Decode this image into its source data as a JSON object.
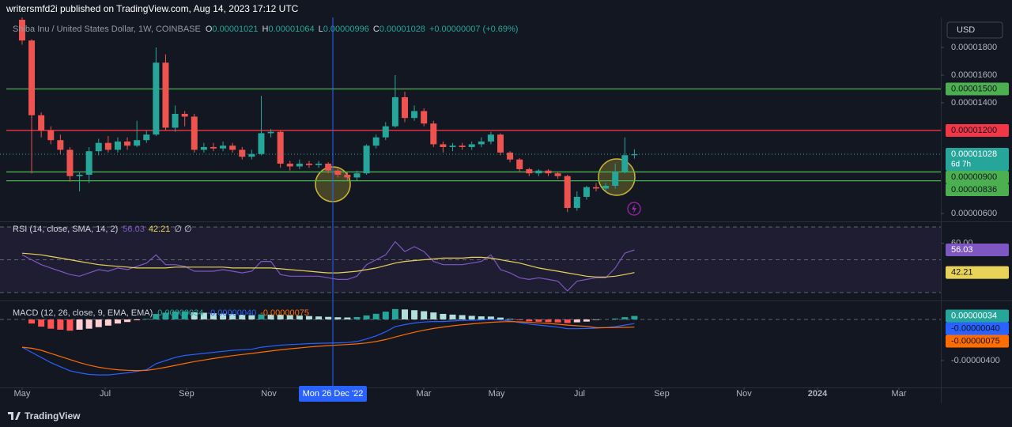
{
  "header": {
    "published": "writersmfd2i published on TradingView.com, Aug 14, 2023 17:12 UTC",
    "currency": "USD",
    "footer": "TradingView"
  },
  "chart_data": [
    {
      "type": "candlestick",
      "title": "Shiba Inu / United States Dollar, 1W, COINBASE",
      "legend_fields": [
        {
          "key": "O",
          "text": "0.00001021"
        },
        {
          "key": "H",
          "text": "0.00001064"
        },
        {
          "key": "L",
          "text": "0.00000996"
        },
        {
          "key": "C",
          "text": "0.00001028"
        }
      ],
      "change": "+0.00000007 (+0.69%)",
      "open": [
        2e-05,
        1.85e-05,
        1.31e-05,
        1.2e-05,
        1.13e-05,
        1.06e-05,
        8.7e-06,
        8.8e-06,
        1.05e-05,
        1.11e-05,
        1.06e-05,
        1.12e-05,
        1.09e-05,
        1.13e-05,
        1.17e-05,
        1.69e-05,
        1.22e-05,
        1.32e-05,
        1.3e-05,
        1.06e-05,
        1.08e-05,
        1.07e-05,
        1.09e-05,
        1.06e-05,
        1.01e-05,
        1.03e-05,
        1.18e-05,
        1.19e-05,
        9.6e-06,
        9.4e-06,
        9.6e-06,
        9.5e-06,
        9.6e-06,
        9.1e-06,
        8.8e-06,
        8.6e-06,
        8.9e-06,
        1.09e-05,
        1.15e-05,
        1.23e-05,
        1.44e-05,
        1.29e-05,
        1.34e-05,
        1.25e-05,
        1.1e-05,
        1.08e-05,
        1.09e-05,
        1.08e-05,
        1.1e-05,
        1.12e-05,
        1.17e-05,
        1.04e-05,
        9.9e-06,
        9.2e-06,
        8.9e-06,
        9.1e-06,
        8.9e-06,
        8.7e-06,
        6.4e-06,
        7.2e-06,
        7.9e-06,
        7.8e-06,
        8e-06,
        9e-06,
        1.021e-05
      ],
      "high": [
        2.017e-05,
        1.86e-05,
        1.33e-05,
        1.23e-05,
        1.17e-05,
        1.08e-05,
        9e-06,
        1.08e-05,
        1.14e-05,
        1.16e-05,
        1.15e-05,
        1.15e-05,
        1.27e-05,
        1.2e-05,
        1.8e-05,
        1.75e-05,
        1.38e-05,
        1.34e-05,
        1.32e-05,
        1.11e-05,
        1.11e-05,
        1.12e-05,
        1.11e-05,
        1.08e-05,
        1.06e-05,
        1.45e-05,
        1.21e-05,
        1.2e-05,
        9.8e-06,
        9.9e-06,
        9.8e-06,
        9.8e-06,
        9.7e-06,
        9.2e-06,
        9e-06,
        9.1e-06,
        1.1e-05,
        1.17e-05,
        1.26e-05,
        1.6e-05,
        1.48e-05,
        1.38e-05,
        1.36e-05,
        1.27e-05,
        1.12e-05,
        1.11e-05,
        1.11e-05,
        1.12e-05,
        1.15e-05,
        1.19e-05,
        1.18e-05,
        1.05e-05,
        1e-05,
        9.3e-06,
        9.2e-06,
        9.2e-06,
        9e-06,
        8.8e-06,
        7.6e-06,
        8e-06,
        8.2e-06,
        8.2e-06,
        9.6e-06,
        1.15e-05,
        1.064e-05
      ],
      "low": [
        1.82e-05,
        8.9e-06,
        1.15e-05,
        1.1e-05,
        1.03e-05,
        8.3e-06,
        7.6e-06,
        8.2e-06,
        1.02e-05,
        1.04e-05,
        1.04e-05,
        1.06e-05,
        1.08e-05,
        1.11e-05,
        1.16e-05,
        1.2e-05,
        1.19e-05,
        1.23e-05,
        1.04e-05,
        1.04e-05,
        1.05e-05,
        1.05e-05,
        1.04e-05,
        9.9e-06,
        9.9e-06,
        1.02e-05,
        1.15e-05,
        9.3e-06,
        9.1e-06,
        9.2e-06,
        9.3e-06,
        9.3e-06,
        8.9e-06,
        8.6e-06,
        8.4e-06,
        8.4e-06,
        8.8e-06,
        1.07e-05,
        1.13e-05,
        1.22e-05,
        1.26e-05,
        1.27e-05,
        1.23e-05,
        1.08e-05,
        1.04e-05,
        1.05e-05,
        1.06e-05,
        1.06e-05,
        1.08e-05,
        1.1e-05,
        1.02e-05,
        9.7e-06,
        9e-06,
        8.7e-06,
        8.7e-06,
        8.7e-06,
        8.5e-06,
        6.1e-06,
        6.2e-06,
        7e-06,
        7.6e-06,
        7.6e-06,
        7.8e-06,
        8.9e-06,
        9.96e-06
      ],
      "close": [
        1.85e-05,
        1.31e-05,
        1.2e-05,
        1.13e-05,
        1.06e-05,
        8.7e-06,
        8.8e-06,
        1.05e-05,
        1.11e-05,
        1.06e-05,
        1.12e-05,
        1.09e-05,
        1.13e-05,
        1.17e-05,
        1.69e-05,
        1.22e-05,
        1.32e-05,
        1.3e-05,
        1.06e-05,
        1.08e-05,
        1.07e-05,
        1.09e-05,
        1.06e-05,
        1.01e-05,
        1.03e-05,
        1.18e-05,
        1.19e-05,
        9.6e-06,
        9.4e-06,
        9.6e-06,
        9.5e-06,
        9.6e-06,
        9.1e-06,
        8.8e-06,
        8.6e-06,
        8.9e-06,
        1.09e-05,
        1.15e-05,
        1.23e-05,
        1.44e-05,
        1.29e-05,
        1.34e-05,
        1.25e-05,
        1.1e-05,
        1.08e-05,
        1.09e-05,
        1.08e-05,
        1.1e-05,
        1.12e-05,
        1.17e-05,
        1.04e-05,
        9.9e-06,
        9.2e-06,
        8.9e-06,
        9.1e-06,
        8.9e-06,
        8.7e-06,
        6.4e-06,
        7.2e-06,
        7.9e-06,
        7.8e-06,
        8e-06,
        9e-06,
        1.021e-05,
        1.028e-05
      ],
      "colors": {
        "up": "#26a69a",
        "down": "#ef5350"
      },
      "xlim": [
        -2.31,
        96.03
      ],
      "xticks": [
        {
          "value": 0,
          "label": "May"
        },
        {
          "value": 8.68,
          "label": "Jul"
        },
        {
          "value": 17.19,
          "label": "Sep"
        },
        {
          "value": 25.79,
          "label": "Nov"
        },
        {
          "value": 41.98,
          "label": "Mar"
        },
        {
          "value": 49.59,
          "label": "May"
        },
        {
          "value": 58.26,
          "label": "Jul"
        },
        {
          "value": 66.86,
          "label": "Sep"
        },
        {
          "value": 75.45,
          "label": "Nov"
        },
        {
          "value": 83.14,
          "label": "2024"
        },
        {
          "value": 91.65,
          "label": "Mar"
        }
      ],
      "crosshair": {
        "value": 32.48,
        "label": "Mon 26 Dec '22"
      },
      "ylim": [
        5.54e-06,
        2.017e-05
      ],
      "yticks": [
        {
          "value": 1.8e-05,
          "label": "0.00001800"
        },
        {
          "value": 1.6e-05,
          "label": "0.00001600"
        },
        {
          "value": 1.4e-05,
          "label": "0.00001400"
        },
        {
          "value": 6e-06,
          "label": "0.00000600"
        }
      ],
      "levels": [
        {
          "value": 1.5e-05,
          "label": "0.00001500",
          "color": "#4caf50"
        },
        {
          "value": 1.2e-05,
          "label": "0.00001200",
          "color": "#f23645"
        },
        {
          "value": 9e-06,
          "label": "0.00000900",
          "color": "#4caf50"
        },
        {
          "value": 8.36e-06,
          "label": "0.00000836",
          "color": "#4caf50"
        }
      ],
      "last_label": "0.00001028",
      "countdown": "6d 7h"
    },
    {
      "type": "line",
      "title": "RSI (14, close, SMA, 14, 2)",
      "series": [
        {
          "color": "#7e57c2",
          "values": [
            53,
            50,
            47,
            45,
            43,
            41,
            40,
            42,
            44,
            43,
            45,
            44,
            46,
            48,
            53,
            47,
            47,
            46,
            43,
            43,
            43,
            44,
            43,
            42,
            43,
            49,
            49,
            41,
            40,
            40,
            40,
            40,
            39,
            38,
            38,
            40,
            47,
            50,
            53,
            61,
            55,
            58,
            55,
            49,
            47,
            47,
            47,
            48,
            49,
            53,
            44,
            42,
            39,
            38,
            39,
            38,
            37,
            31,
            37,
            38,
            39,
            39,
            45,
            54,
            56.03
          ]
        },
        {
          "color": "#e9d25a",
          "values": [
            54,
            53.5,
            53,
            52,
            51,
            50,
            49,
            48,
            47,
            46.5,
            46,
            45.5,
            45,
            45,
            45,
            45,
            45.5,
            45.5,
            45.5,
            45.5,
            45.5,
            45.5,
            45,
            45,
            45,
            45,
            45,
            44.5,
            44,
            43.5,
            43,
            42.5,
            42,
            42,
            42.5,
            43,
            44,
            45,
            46.5,
            48,
            49,
            49.5,
            50,
            50.5,
            51,
            51,
            51,
            51.5,
            51.5,
            51,
            50,
            49,
            48,
            46.5,
            45,
            44,
            43,
            42,
            41,
            40,
            39.5,
            39.5,
            40,
            41,
            42.21
          ]
        }
      ],
      "legend_extra": "∅ ∅",
      "ylim": [
        27.59,
        71.93
      ],
      "yticks": [
        {
          "value": 60,
          "label": "60.00"
        }
      ],
      "bands": [
        70,
        50,
        30
      ]
    },
    {
      "type": "combo",
      "title": "MACD (12, 26, close, 9, EMA, EMA)",
      "series": [
        {
          "type": "bar",
          "values": [
            0,
            -4e-07,
            -7e-07,
            -9e-07,
            -1e-06,
            -1.1e-06,
            -1e-06,
            -9e-07,
            -7.5e-07,
            -6e-07,
            -4e-07,
            -2.5e-07,
            -8e-08,
            6e-08,
            5.3e-07,
            6.6e-07,
            7.7e-07,
            7.8e-07,
            7e-07,
            6.5e-07,
            6e-07,
            5.6e-07,
            5.3e-07,
            4.6e-07,
            4.1e-07,
            4.9e-07,
            4.7e-07,
            4.6e-07,
            4.1e-07,
            3.7e-07,
            3.3e-07,
            2.9e-07,
            2.5e-07,
            2.1e-07,
            1.9e-07,
            2.3e-07,
            3.9e-07,
            5.5e-07,
            7.6e-07,
            1.01e-06,
            9.7e-07,
            9e-07,
            8e-07,
            6.8e-07,
            5.4e-07,
            4.7e-07,
            4.2e-07,
            3.5e-07,
            3e-07,
            2.8e-07,
            1.8e-07,
            6e-08,
            -7e-08,
            -1.8e-07,
            -2.2e-07,
            -2.6e-07,
            -2.9e-07,
            -3.5e-07,
            -2.8e-07,
            -2.1e-07,
            -5e-08,
            0,
            9e-08,
            2.2e-07,
            3.4e-07
          ],
          "colors": {
            "up_rising": "#26a69a",
            "up_falling": "#b2dfdb",
            "down_falling": "#ff5252",
            "down_rising": "#ffcdd2"
          },
          "color": "#26a69a",
          "last_label": "0.00000034"
        },
        {
          "type": "line",
          "color": "#2962ff",
          "values": [
            -2.7e-06,
            -3.2e-06,
            -3.7e-06,
            -4.2e-06,
            -4.6e-06,
            -5e-06,
            -5.2e-06,
            -5.35e-06,
            -5.4e-06,
            -5.4e-06,
            -5.3e-06,
            -5.2e-06,
            -5.05e-06,
            -4.9e-06,
            -4.3e-06,
            -4e-06,
            -3.7e-06,
            -3.5e-06,
            -3.4e-06,
            -3.3e-06,
            -3.2e-06,
            -3.1e-06,
            -3e-06,
            -2.95e-06,
            -2.9e-06,
            -2.7e-06,
            -2.6e-06,
            -2.5e-06,
            -2.45e-06,
            -2.4e-06,
            -2.35e-06,
            -2.32e-06,
            -2.3e-06,
            -2.28e-06,
            -2.25e-06,
            -2.15e-06,
            -1.9e-06,
            -1.6e-06,
            -1.2e-06,
            -7e-07,
            -5e-07,
            -3.5e-07,
            -2.5e-07,
            -2e-07,
            -2e-07,
            -1.5e-07,
            -1e-07,
            -8e-08,
            -5e-08,
            0,
            -5e-08,
            -1.5e-07,
            -3e-07,
            -4.5e-07,
            -5.5e-07,
            -6.5e-07,
            -7.5e-07,
            -9e-07,
            -9e-07,
            -8.8e-07,
            -8.5e-07,
            -8e-07,
            -7e-07,
            -5.5e-07,
            -4e-07
          ],
          "last_label": "-0.00000040"
        },
        {
          "type": "line",
          "color": "#ff6d00",
          "values": [
            -2.7e-06,
            -2.8e-06,
            -3e-06,
            -3.3e-06,
            -3.6e-06,
            -3.9e-06,
            -4.2e-06,
            -4.45e-06,
            -4.65e-06,
            -4.8e-06,
            -4.9e-06,
            -4.95e-06,
            -4.97e-06,
            -4.96e-06,
            -4.83e-06,
            -4.66e-06,
            -4.47e-06,
            -4.28e-06,
            -4.1e-06,
            -3.95e-06,
            -3.8e-06,
            -3.66e-06,
            -3.53e-06,
            -3.41e-06,
            -3.31e-06,
            -3.19e-06,
            -3.07e-06,
            -2.96e-06,
            -2.86e-06,
            -2.77e-06,
            -2.68e-06,
            -2.61e-06,
            -2.55e-06,
            -2.49e-06,
            -2.44e-06,
            -2.38e-06,
            -2.29e-06,
            -2.15e-06,
            -1.96e-06,
            -1.71e-06,
            -1.47e-06,
            -1.25e-06,
            -1.05e-06,
            -8.8e-07,
            -7.4e-07,
            -6.2e-07,
            -5.2e-07,
            -4.3e-07,
            -3.5e-07,
            -2.8e-07,
            -2.3e-07,
            -2.1e-07,
            -2.3e-07,
            -2.7e-07,
            -3.3e-07,
            -3.9e-07,
            -4.6e-07,
            -5.5e-07,
            -6.2e-07,
            -6.7e-07,
            -8e-07,
            -8e-07,
            -7.9e-07,
            -7.7e-07,
            -7.5e-07
          ],
          "last_label": "-0.00000075"
        }
      ],
      "ylim": [
        -6.62e-06,
        1.46e-06
      ],
      "yticks": [
        {
          "value": -4e-06,
          "label": "-0.00000400"
        }
      ]
    }
  ]
}
